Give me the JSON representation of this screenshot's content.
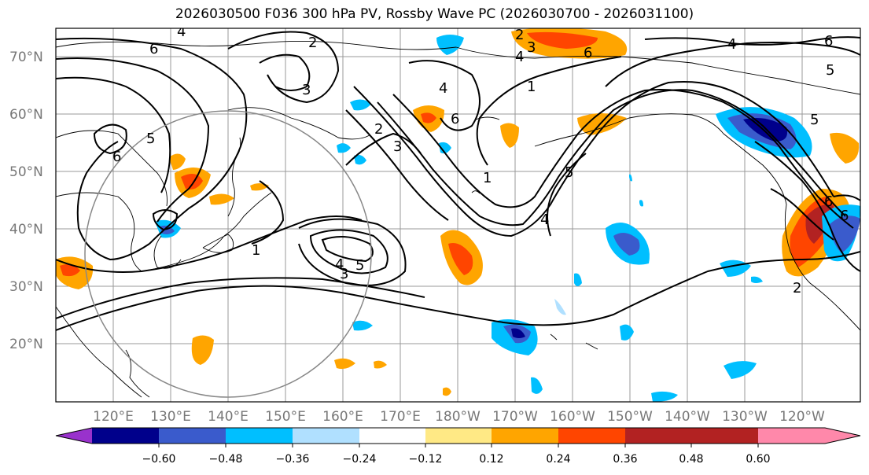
{
  "title": "2026030500 F036 300 hPa PV, Rossby Wave PC (2026030700 - 2026031100)",
  "lat_labels": [
    "70°N",
    "60°N",
    "50°N",
    "40°N",
    "30°N",
    "20°N"
  ],
  "lon_labels": [
    "120°E",
    "130°E",
    "140°E",
    "150°E",
    "160°E",
    "170°E",
    "180°W",
    "170°W",
    "160°W",
    "150°W",
    "140°W",
    "130°W",
    "120°W"
  ],
  "colorbar": {
    "ticks": [
      "−0.60",
      "−0.48",
      "−0.36",
      "−0.24",
      "−0.12",
      "0.12",
      "0.24",
      "0.36",
      "0.48",
      "0.60"
    ],
    "colors": [
      "#9932cc",
      "#00008b",
      "#3a5bcc",
      "#00bfff",
      "#b0e0ff",
      "#ffffff",
      "#ffe985",
      "#ffa500",
      "#ff4500",
      "#b22222",
      "#ff88aa"
    ]
  },
  "contour_labels": [
    "2",
    "4",
    "6",
    "3",
    "5",
    "6",
    "2",
    "3",
    "4",
    "6",
    "4",
    "1",
    "2",
    "3",
    "6",
    "5",
    "1",
    "4",
    "5",
    "1",
    "4",
    "3",
    "6",
    "5",
    "2",
    "6",
    "4",
    "6",
    "5"
  ]
}
